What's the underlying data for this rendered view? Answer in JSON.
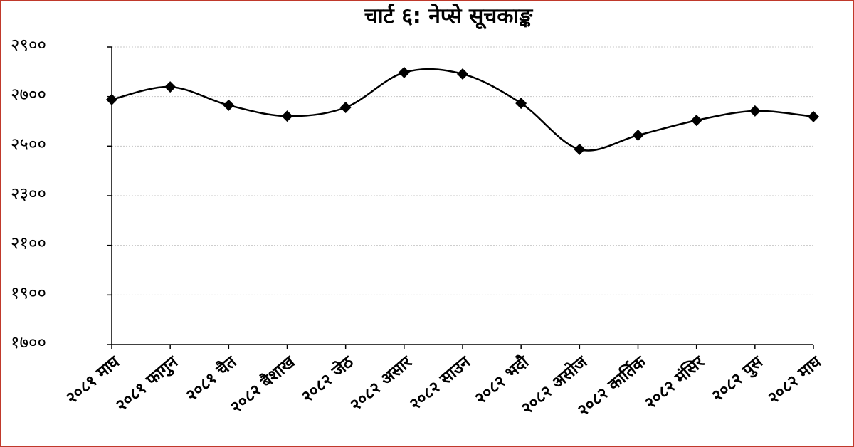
{
  "chart_data": {
    "type": "line",
    "title": "चार्ट ६: नेप्से सूचकाङ्क",
    "categories": [
      "२०८१ माघ",
      "२०८१ फागुन",
      "२०८१ चैत",
      "२०८२ बैशाख",
      "२०८२ जेठ",
      "२०८२ असार",
      "२०८२ साउन",
      "२०८२ भदौ",
      "२०८२ असोज",
      "२०८२ कार्तिक",
      "२०८२ मंसिर",
      "२०८२ पुस",
      "२०८२ माघ"
    ],
    "values": [
      2688,
      2739,
      2665,
      2621,
      2656,
      2797,
      2791,
      2673,
      2487,
      2544,
      2604,
      2642,
      2619
    ],
    "color": "#000000",
    "marker": "diamond",
    "smooth": true,
    "ylim": [
      1700,
      2900
    ],
    "yticks": [
      {
        "value": 1700,
        "label": "१७००"
      },
      {
        "value": 1900,
        "label": "१९००"
      },
      {
        "value": 2100,
        "label": "२१००"
      },
      {
        "value": 2300,
        "label": "२३००"
      },
      {
        "value": 2500,
        "label": "२५००"
      },
      {
        "value": 2700,
        "label": "२७००"
      },
      {
        "value": 2900,
        "label": "२९००"
      }
    ],
    "grid": true
  }
}
